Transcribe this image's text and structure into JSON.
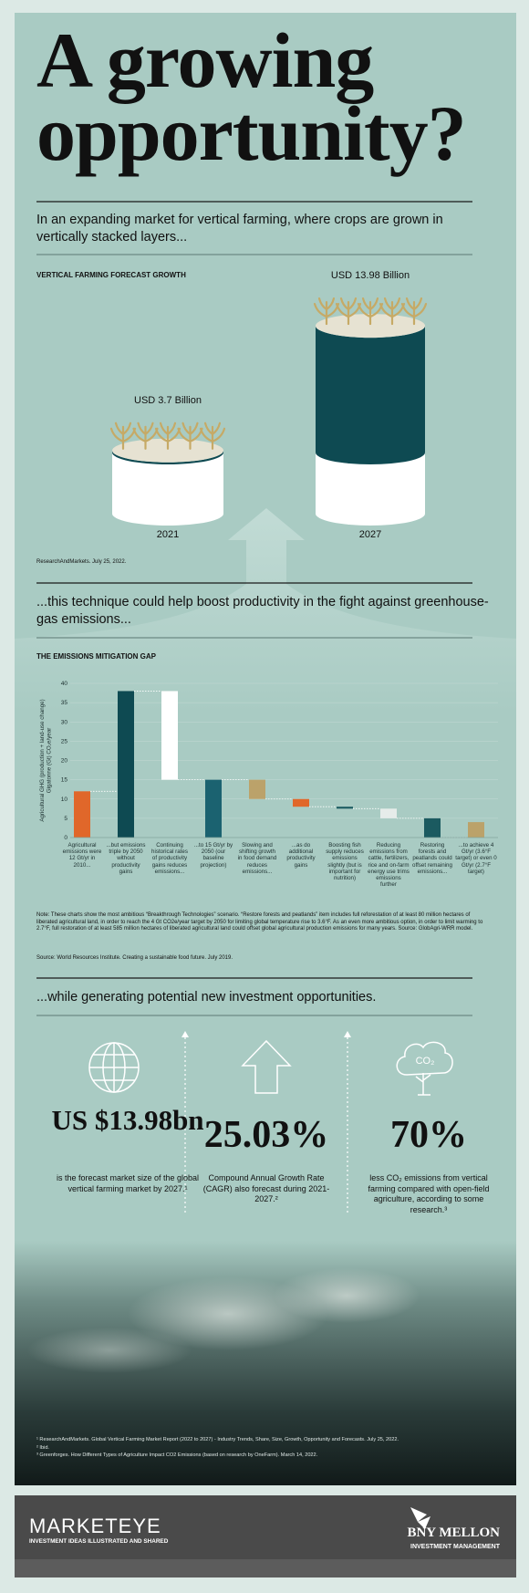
{
  "header": {
    "title": "A growing opportunity?"
  },
  "intro_1": "In an expanding market for vertical farming, where crops are grown in vertically stacked layers...",
  "intro_2": "...this technique could help boost productivity in the fight against greenhouse-gas emissions...",
  "intro_3": "...while generating potential new investment opportunities.",
  "chart_data": [
    {
      "type": "cylinder",
      "title": "VERTICAL FARMING FORECAST GROWTH",
      "categories": [
        "2021",
        "2027"
      ],
      "values": [
        3.7,
        13.98
      ],
      "value_labels": [
        "USD 3.7 Billion",
        "USD 13.98 Billion"
      ],
      "colors": [
        "#ffffff",
        "#0e4a52"
      ],
      "source": "ResearchAndMarkets. July 25, 2022."
    },
    {
      "type": "waterfall",
      "title": "THE EMISSIONS MITIGATION GAP",
      "ylabel": [
        "Agricultural GHG (production + land-use change)",
        "Gigatonne (Gt) CO₂e/year"
      ],
      "categories": [
        "Agricultural emissions were 12 Gt/yr in 2010...",
        "...but emissions triple by 2050 without productivity gains",
        "Continuing historical rates of productivity gains reduces emissions...",
        "...to 15 Gt/yr by 2050 (our baseline projection)",
        "Slowing and shifting growth in food demand reduces emissions...",
        "...as do additional productivity gains",
        "Boosting fish supply reduces emissions slightly (but is important for nutrition)",
        "Reducing emissions from cattle, fertilizers, rice and on-farm energy use trims emissions further",
        "Restoring forests and peatlands could offset remaining emissions...",
        "...to achieve 4 Gt/yr (3.6°F target) or even 0 Gt/yr (2.7°F target)"
      ],
      "values": [
        12,
        38,
        -23,
        15,
        -5,
        -2,
        -0.5,
        -2.5,
        -5,
        4
      ],
      "measure": [
        "absolute",
        "absolute",
        "relative",
        "absolute",
        "relative",
        "relative",
        "relative",
        "relative",
        "relative",
        "absolute"
      ],
      "colors": [
        "#e0672a",
        "#0e4a52",
        "#ffffff",
        "#1b6270",
        "#bba26a",
        "#e0672a",
        "#1b5a60",
        "#e6ecea",
        "#1b5a60",
        "#bba26a"
      ],
      "ylim": [
        0,
        40
      ],
      "yticks": [
        0,
        5,
        10,
        15,
        20,
        25,
        30,
        35,
        40
      ],
      "grid": true,
      "note": "Note: These charts show the most ambitious “Breakthrough Technologies” scenario. “Restore forests and peatlands” item includes full reforestation of at least 80 million hectares of liberated agricultural land, in order to reach the 4 Gt CO2e/year target by 2050 for limiting global temperature rise to 3.6°F. As an even more ambitious option, in order to limit warming to 2.7°F, full restoration of at least 585 million hectares of liberated agricultural land could offset global agricultural production emissions for many years. Source: GlobAgri-WRR model.",
      "source": "Source: World Resources Institute. Creating a sustainable food future. July 2019."
    }
  ],
  "stats": [
    {
      "value": "US $13.98bn",
      "caption": "is the forecast market size of the global vertical farming market by 2027.¹"
    },
    {
      "value": "25.03%",
      "caption": "Compound Annual Growth Rate (CAGR) also forecast during 2021-2027.²"
    },
    {
      "value": "70%",
      "caption": "less CO₂ emissions from vertical farming compared with open-field agriculture, according to some research.³"
    }
  ],
  "icons": {
    "co2": "CO₂"
  },
  "footnotes": [
    "¹ ResearchAndMarkets. Global Vertical Farming Market Report (2022 to 2027) - Industry Trends, Share, Size, Growth, Opportunity and Forecasts. July 25, 2022.",
    "² Ibid.",
    "³ Greenforges. How Different Types of Agriculture Impact CO2 Emissions (based on research by OneFarm). March 14, 2022."
  ],
  "footer": {
    "brand": "MARKETEYE",
    "tagline": "INVESTMENT IDEAS ILLUSTRATED AND SHARED",
    "company": "BNY MELLON",
    "division": "INVESTMENT MANAGEMENT"
  }
}
